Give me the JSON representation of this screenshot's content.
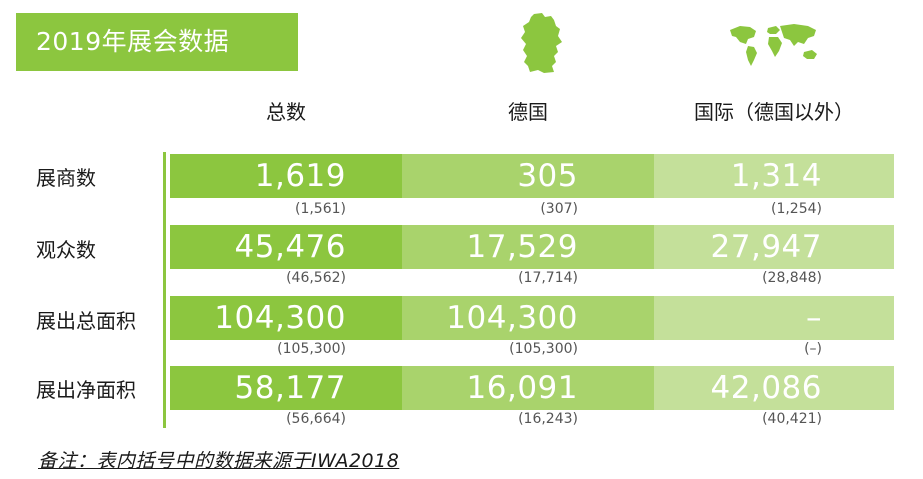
{
  "title": "2019年展会数据",
  "icons": {
    "germany": "germany-map-icon",
    "world": "world-map-icon"
  },
  "colors": {
    "primary": "#8cc63f",
    "secondary": "#a9d36c",
    "tertiary": "#c4e09a"
  },
  "columns": [
    "总数",
    "德国",
    "国际（德国以外）"
  ],
  "rows": [
    {
      "label": "展商数",
      "values": [
        "1,619",
        "305",
        "1,314"
      ],
      "prev": [
        "(1,561)",
        "(307)",
        "(1,254)"
      ]
    },
    {
      "label": "观众数",
      "values": [
        "45,476",
        "17,529",
        "27,947"
      ],
      "prev": [
        "(46,562)",
        "(17,714)",
        "(28,848)"
      ]
    },
    {
      "label": "展出总面积",
      "values": [
        "104,300",
        "104,300",
        "–"
      ],
      "prev": [
        "(105,300)",
        "(105,300)",
        "(–)"
      ]
    },
    {
      "label": "展出净面积",
      "values": [
        "58,177",
        "16,091",
        "42,086"
      ],
      "prev": [
        "(56,664)",
        "(16,243)",
        "(40,421)"
      ]
    }
  ],
  "note": "备注：表内括号中的数据来源于IWA2018"
}
